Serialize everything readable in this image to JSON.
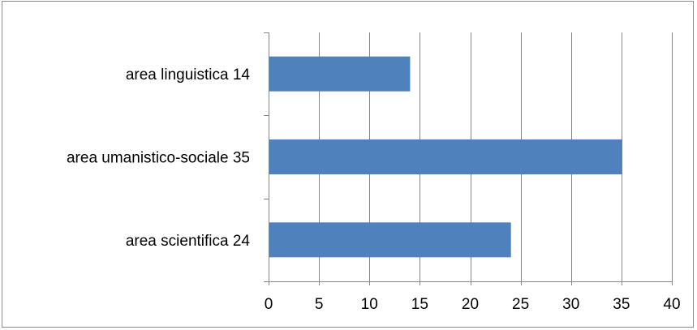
{
  "chart_data": {
    "type": "bar",
    "orientation": "horizontal",
    "title": "",
    "xlabel": "",
    "ylabel": "",
    "categories": [
      "area linguistica 14",
      "area umanistico-sociale 35",
      "area scientifica 24"
    ],
    "values": [
      14,
      35,
      24
    ],
    "xlim": [
      0,
      40
    ],
    "x_ticks": [
      "0",
      "5",
      "10",
      "15",
      "20",
      "25",
      "30",
      "35",
      "40"
    ],
    "grid": "vertical",
    "legend": "none",
    "bar_color": "#4f81bd",
    "grid_color": "#868686"
  }
}
